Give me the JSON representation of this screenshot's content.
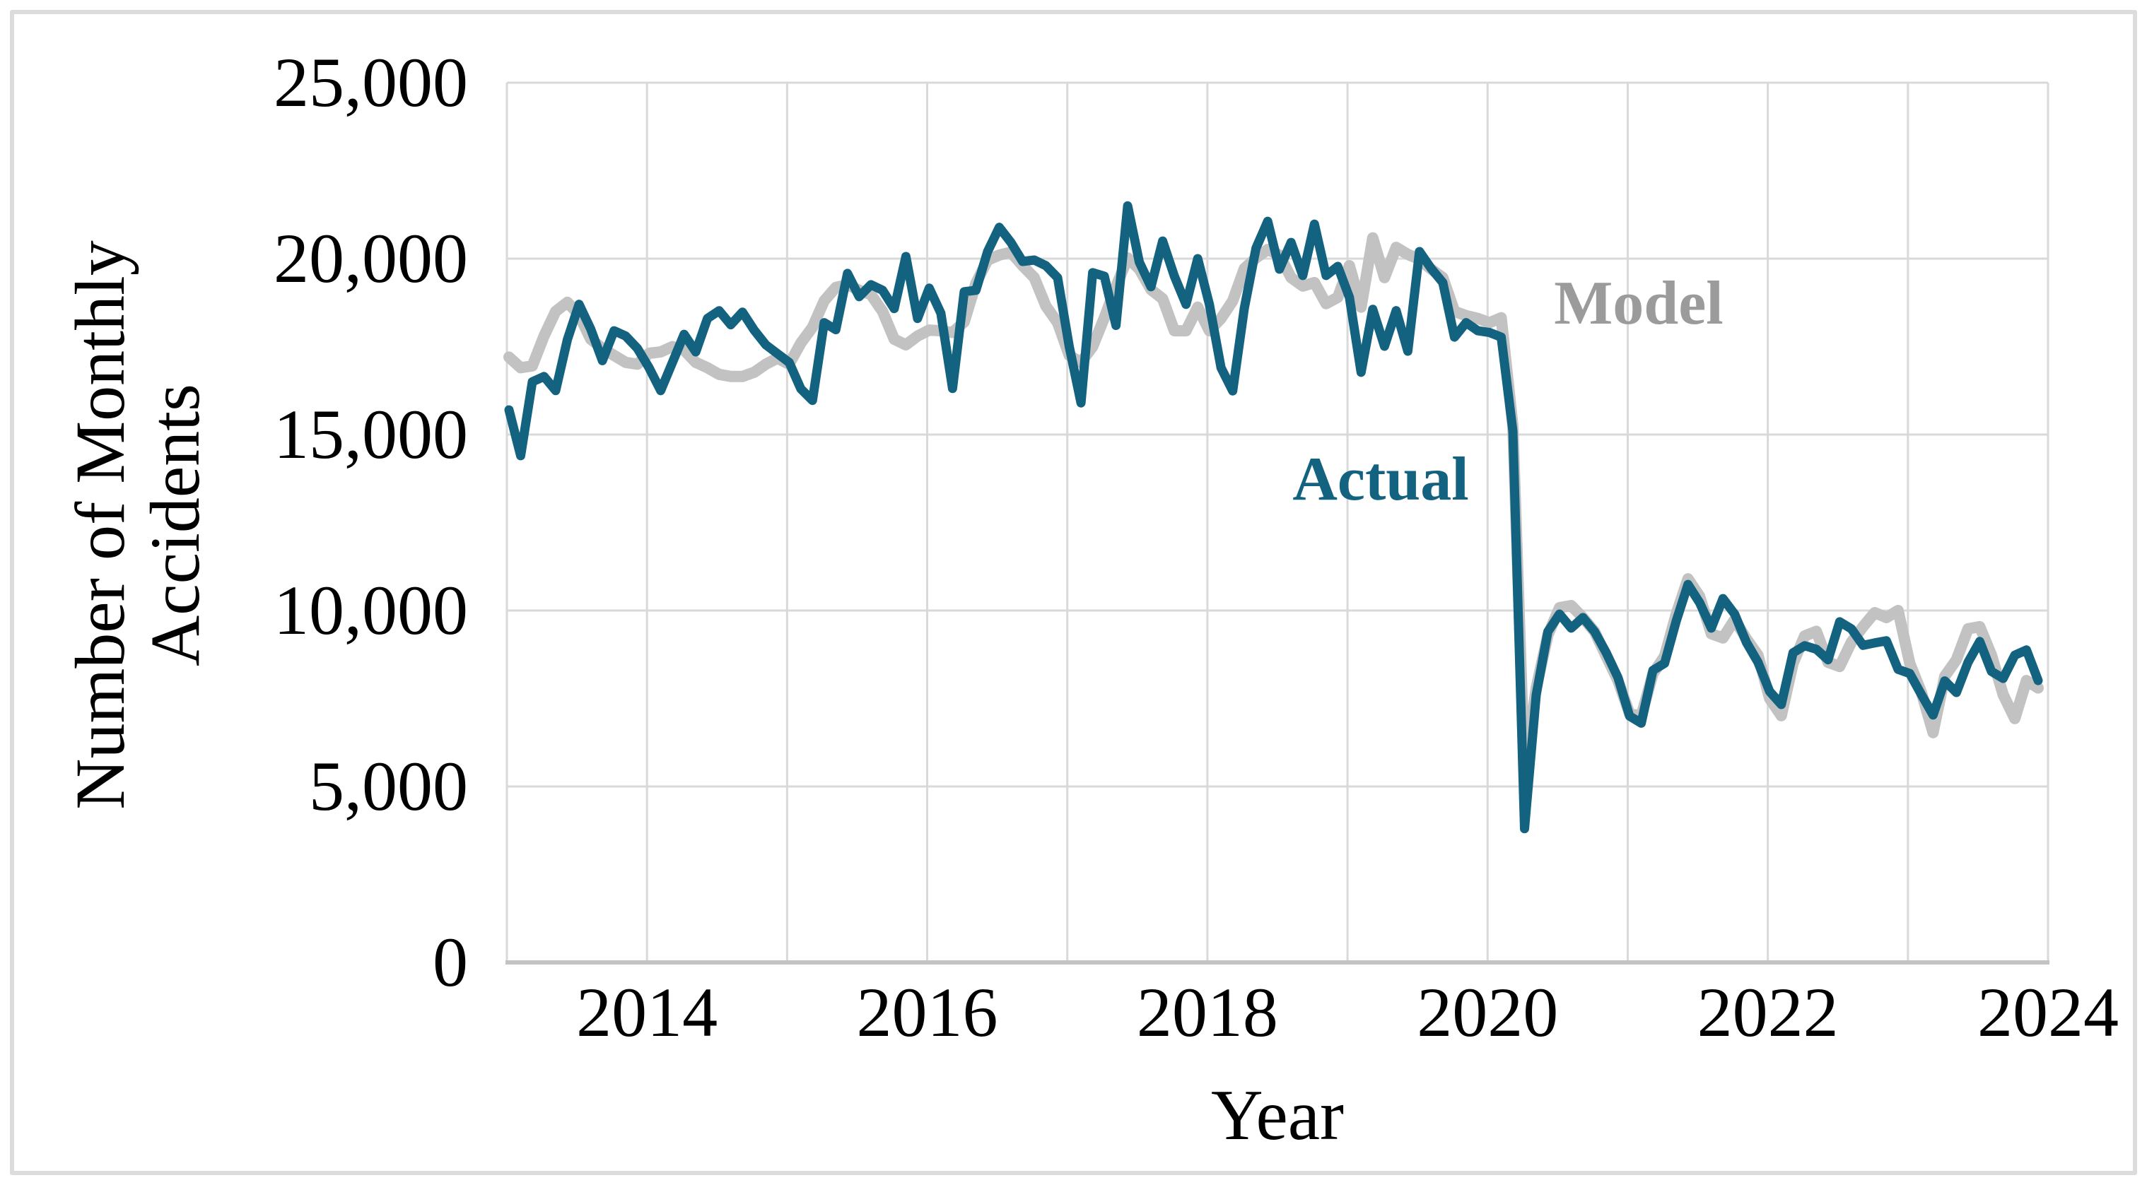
{
  "figure": {
    "y_axis": {
      "title_line1": "Number of Monthly",
      "title_line2": "Accidents",
      "tick_labels": [
        "25,000",
        "20,000",
        "15,000",
        "10,000",
        "5,000",
        "0"
      ]
    },
    "x_axis": {
      "title": "Year",
      "tick_labels": [
        "2014",
        "2016",
        "2018",
        "2020",
        "2022",
        "2024"
      ]
    },
    "annotations": {
      "model_label": "Model",
      "actual_label": "Actual"
    },
    "colors": {
      "actual_line": "#136280",
      "model_line": "#c2c2c2",
      "actual_text": "#136280",
      "model_text": "#9b9b9b",
      "gridline": "#d9d9d9",
      "axis_line": "#c3c3c3",
      "frame_border": "#dcdcdc",
      "tick_text": "#000000"
    }
  },
  "chart_data": {
    "type": "line",
    "title": "",
    "xlabel": "Year",
    "ylabel": "Number of Monthly Accidents",
    "x_unit": "month",
    "x_start": "2013-01",
    "x_end": "2023-12",
    "xlim_years": [
      2013,
      2024
    ],
    "ylim": [
      0,
      25000
    ],
    "y_gridline_step": 5000,
    "x_gridline_step_years": 1,
    "grid": true,
    "legend_position": "inline-annotations",
    "series": [
      {
        "name": "Model",
        "color": "#c2c2c2",
        "values": [
          17200,
          16900,
          16950,
          17800,
          18500,
          18760,
          18400,
          17710,
          17450,
          17250,
          17050,
          17000,
          17310,
          17350,
          17500,
          17400,
          17050,
          16900,
          16710,
          16650,
          16650,
          16770,
          17000,
          17170,
          17000,
          17600,
          18050,
          18800,
          19180,
          19260,
          19100,
          18980,
          18500,
          17710,
          17550,
          17800,
          17970,
          17950,
          17900,
          18200,
          19300,
          19960,
          20100,
          20180,
          19800,
          19460,
          18650,
          18180,
          17250,
          17050,
          17500,
          18320,
          19200,
          20020,
          19700,
          19120,
          18860,
          17950,
          17950,
          18620,
          17950,
          18300,
          18800,
          19720,
          20020,
          20260,
          20100,
          19460,
          19220,
          19320,
          18720,
          18900,
          19800,
          18620,
          20590,
          19460,
          20320,
          20120,
          19980,
          19700,
          19460,
          18500,
          18380,
          18300,
          18180,
          18320,
          15240,
          5400,
          7800,
          9300,
          10080,
          10140,
          9800,
          9400,
          8700,
          8010,
          7070,
          7000,
          8200,
          8700,
          9900,
          10900,
          10400,
          9340,
          9220,
          9740,
          9200,
          8730,
          7500,
          7010,
          8500,
          9280,
          9410,
          8530,
          8410,
          9100,
          9540,
          9940,
          9800,
          10000,
          8500,
          7670,
          6530,
          8130,
          8600,
          9480,
          9540,
          8730,
          7610,
          6930,
          8010,
          7800
        ]
      },
      {
        "name": "Actual",
        "color": "#136280",
        "values": [
          15700,
          14400,
          16500,
          16650,
          16250,
          17700,
          18700,
          18000,
          17100,
          17950,
          17800,
          17450,
          16900,
          16250,
          17050,
          17850,
          17350,
          18300,
          18520,
          18120,
          18480,
          17970,
          17550,
          17300,
          17050,
          16300,
          15970,
          18180,
          17980,
          19580,
          18920,
          19260,
          19100,
          18580,
          20060,
          18300,
          19160,
          18450,
          16310,
          19060,
          19100,
          20200,
          20890,
          20460,
          19920,
          19960,
          19800,
          19460,
          17500,
          15900,
          19600,
          19500,
          18100,
          21500,
          19900,
          19200,
          20500,
          19500,
          18700,
          20000,
          18700,
          16900,
          16240,
          18600,
          20300,
          21060,
          19700,
          20460,
          19520,
          20980,
          19520,
          19780,
          18900,
          16770,
          18560,
          17510,
          18520,
          17370,
          20200,
          19720,
          19320,
          17770,
          18180,
          17950,
          17900,
          17770,
          15100,
          3800,
          7600,
          9400,
          9900,
          9500,
          9800,
          9400,
          8800,
          8100,
          7000,
          6800,
          8300,
          8500,
          9700,
          10740,
          10220,
          9500,
          10340,
          9900,
          9100,
          8530,
          7700,
          7330,
          8800,
          9000,
          8900,
          8600,
          9680,
          9480,
          9010,
          9080,
          9140,
          8330,
          8210,
          7610,
          7030,
          8000,
          7670,
          8530,
          9120,
          8270,
          8070,
          8730,
          8880,
          8010
        ]
      }
    ]
  }
}
